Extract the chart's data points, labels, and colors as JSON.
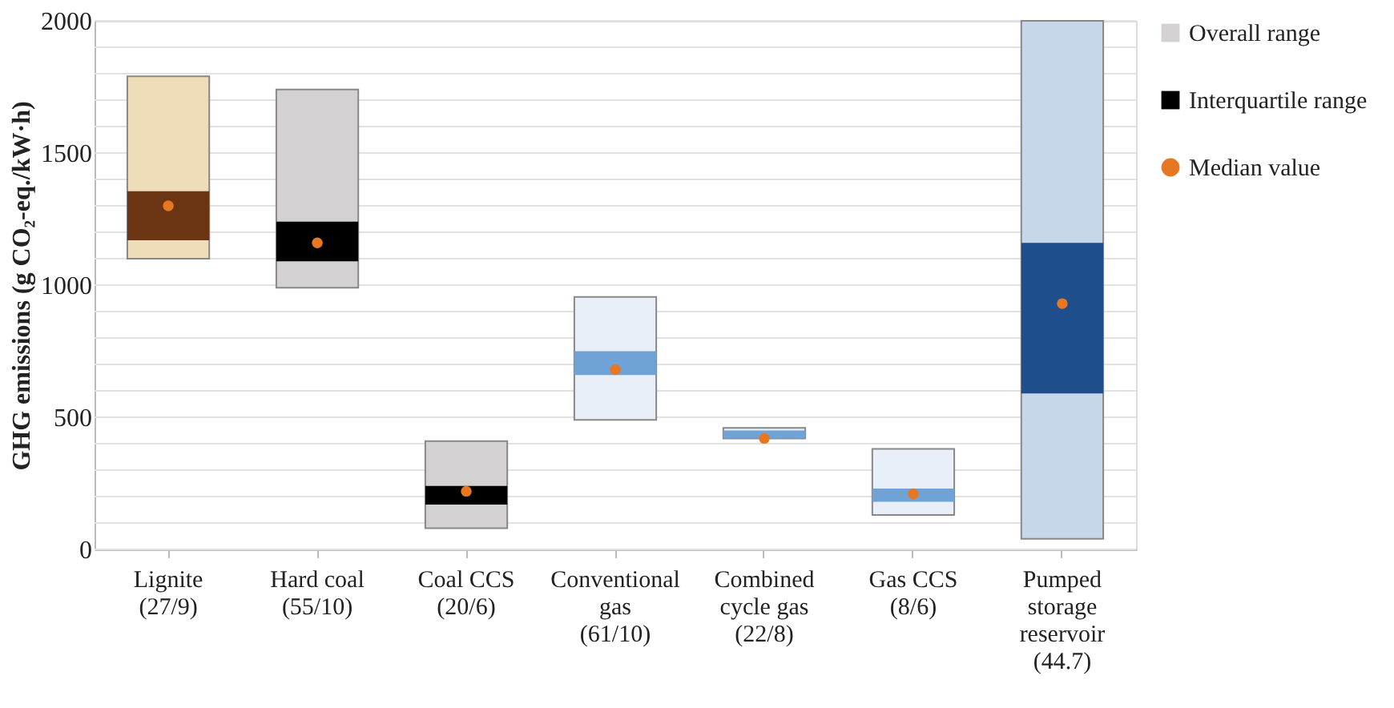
{
  "chart_data": {
    "type": "bar",
    "ylabel": "GHG emissions (g CO₂-eq./kW·h)",
    "categories": [
      "Lignite\n(27/9)",
      "Hard coal\n(55/10)",
      "Coal CCS\n(20/6)",
      "Conventional\ngas\n(61/10)",
      "Combined\ncycle gas\n(22/8)",
      "Gas CCS\n(8/6)",
      "Pumped\nstorage\nreservoir\n(44.7)"
    ],
    "series": [
      {
        "name": "Overall range",
        "color": "#d3d1d2",
        "base": [
          1100,
          990,
          80,
          490,
          420,
          130,
          40
        ],
        "values": [
          690,
          750,
          330,
          465,
          40,
          250,
          1960
        ],
        "colors": [
          "#efdcb9",
          "#d3d1d2",
          "#d3d1d2",
          "#e8eff9",
          "#e8eff9",
          "#e8eff9",
          "#c8d6ea"
        ]
      },
      {
        "name": "Interquartile range",
        "color": "#000000",
        "base": [
          1170,
          1090,
          170,
          660,
          420,
          180,
          590
        ],
        "values": [
          185,
          150,
          70,
          90,
          30,
          50,
          570
        ],
        "colors": [
          "#6b3412",
          "#000000",
          "#000000",
          "#6fa2d6",
          "#6fa2d6",
          "#6fa2d6",
          "#1f4e8c"
        ]
      },
      {
        "name": "Median value",
        "type": "scatter",
        "color": "#e87722",
        "marker": "circle",
        "values": [
          1300,
          1160,
          220,
          680,
          420,
          210,
          930
        ]
      }
    ],
    "legend": "right",
    "ylim": [
      0,
      2000
    ],
    "yticks": [
      0,
      {
        "value": 100,
        "label": null
      },
      {
        "value": 200,
        "label": null
      },
      {
        "value": 300,
        "label": null
      },
      {
        "value": 400,
        "label": null
      },
      500,
      {
        "value": 600,
        "label": null
      },
      {
        "value": 700,
        "label": null
      },
      {
        "value": 800,
        "label": null
      },
      {
        "value": 900,
        "label": null
      },
      1000,
      {
        "value": 1100,
        "label": null
      },
      {
        "value": 1200,
        "label": null
      },
      {
        "value": 1300,
        "label": null
      },
      {
        "value": 1400,
        "label": null
      },
      1500,
      {
        "value": 1600,
        "label": null
      },
      {
        "value": 1700,
        "label": null
      },
      {
        "value": 1800,
        "label": null
      },
      {
        "value": 1900,
        "label": null
      },
      2000
    ],
    "grid": "y"
  }
}
